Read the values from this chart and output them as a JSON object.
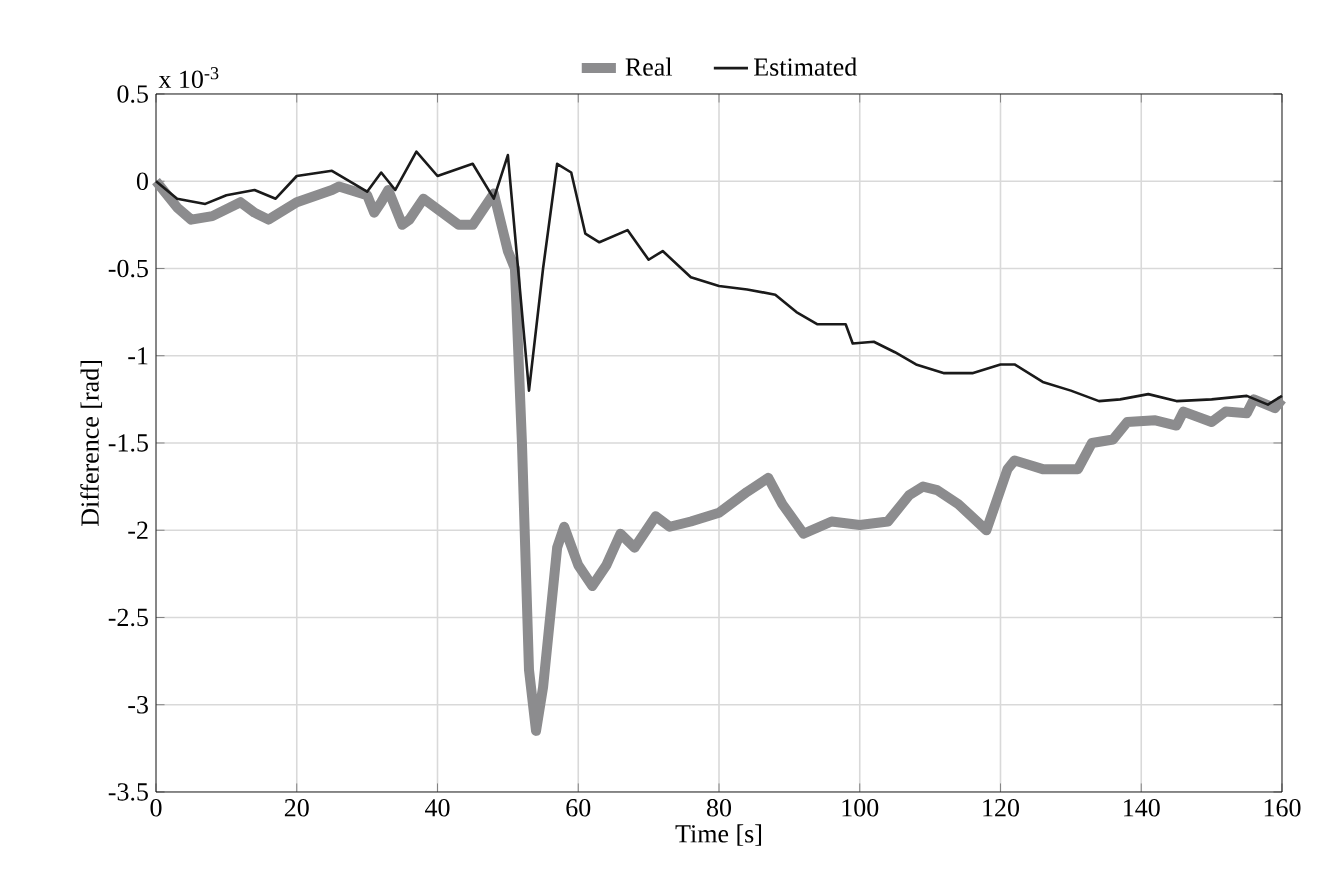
{
  "chart_data": {
    "type": "line",
    "xlabel": "Time [s]",
    "ylabel": "Difference [rad]",
    "annotations": [
      "x 10$^{-3}$"
    ],
    "xlim": [
      0,
      160
    ],
    "xticks": [
      0,
      20,
      40,
      60,
      80,
      100,
      120,
      140,
      160
    ],
    "ylim": [
      -3.5,
      0.5
    ],
    "yticks": [
      -3.5,
      -3,
      -2.5,
      -2,
      -1.5,
      -1,
      -0.5,
      0,
      0.5
    ],
    "grid": true,
    "legend": "top",
    "marker": "none",
    "line_style": "solid",
    "series": [
      {
        "name": "Real",
        "color": "#8c8c8e",
        "x": [
          0,
          3,
          5,
          8,
          12,
          14,
          16,
          20,
          25,
          26,
          30,
          31,
          32,
          33,
          35,
          36,
          38,
          43,
          45,
          48,
          50,
          51,
          52,
          53,
          54,
          55,
          57,
          58,
          60,
          62,
          64,
          66,
          68,
          71,
          73,
          76,
          80,
          84,
          87,
          89,
          92,
          96,
          100,
          104,
          107,
          109,
          111,
          114,
          118,
          121,
          122,
          126,
          131,
          133,
          136,
          138,
          142,
          145,
          146,
          150,
          152,
          155,
          156,
          159,
          160
        ],
        "values": [
          0,
          -0.15,
          -0.22,
          -0.2,
          -0.12,
          -0.18,
          -0.22,
          -0.12,
          -0.05,
          -0.03,
          -0.08,
          -0.18,
          -0.12,
          -0.05,
          -0.25,
          -0.22,
          -0.1,
          -0.25,
          -0.25,
          -0.07,
          -0.4,
          -0.5,
          -1.5,
          -2.8,
          -3.15,
          -2.9,
          -2.1,
          -1.98,
          -2.2,
          -2.32,
          -2.2,
          -2.02,
          -2.1,
          -1.92,
          -1.98,
          -1.95,
          -1.9,
          -1.78,
          -1.7,
          -1.85,
          -2.02,
          -1.95,
          -1.97,
          -1.95,
          -1.8,
          -1.75,
          -1.77,
          -1.85,
          -2.0,
          -1.65,
          -1.6,
          -1.65,
          -1.65,
          -1.5,
          -1.48,
          -1.38,
          -1.37,
          -1.4,
          -1.32,
          -1.38,
          -1.32,
          -1.33,
          -1.25,
          -1.3,
          -1.25
        ]
      },
      {
        "name": "Estimated",
        "color": "#1a1a1a",
        "x": [
          0,
          3,
          7,
          10,
          14,
          17,
          20,
          25,
          30,
          32,
          34,
          37,
          40,
          45,
          48,
          50,
          51,
          53,
          55,
          57,
          59,
          61,
          63,
          67,
          70,
          72,
          76,
          80,
          84,
          88,
          91,
          94,
          98,
          99,
          102,
          105,
          108,
          112,
          116,
          120,
          122,
          126,
          130,
          134,
          137,
          141,
          145,
          150,
          155,
          158,
          160
        ],
        "values": [
          0,
          -0.1,
          -0.13,
          -0.08,
          -0.05,
          -0.1,
          0.03,
          0.06,
          -0.06,
          0.05,
          -0.05,
          0.17,
          0.03,
          0.1,
          -0.1,
          0.15,
          -0.3,
          -1.2,
          -0.5,
          0.1,
          0.05,
          -0.3,
          -0.35,
          -0.28,
          -0.45,
          -0.4,
          -0.55,
          -0.6,
          -0.62,
          -0.65,
          -0.75,
          -0.82,
          -0.82,
          -0.93,
          -0.92,
          -0.98,
          -1.05,
          -1.1,
          -1.1,
          -1.05,
          -1.05,
          -1.15,
          -1.2,
          -1.26,
          -1.25,
          -1.22,
          -1.26,
          -1.25,
          -1.23,
          -1.28,
          -1.23
        ]
      }
    ]
  }
}
